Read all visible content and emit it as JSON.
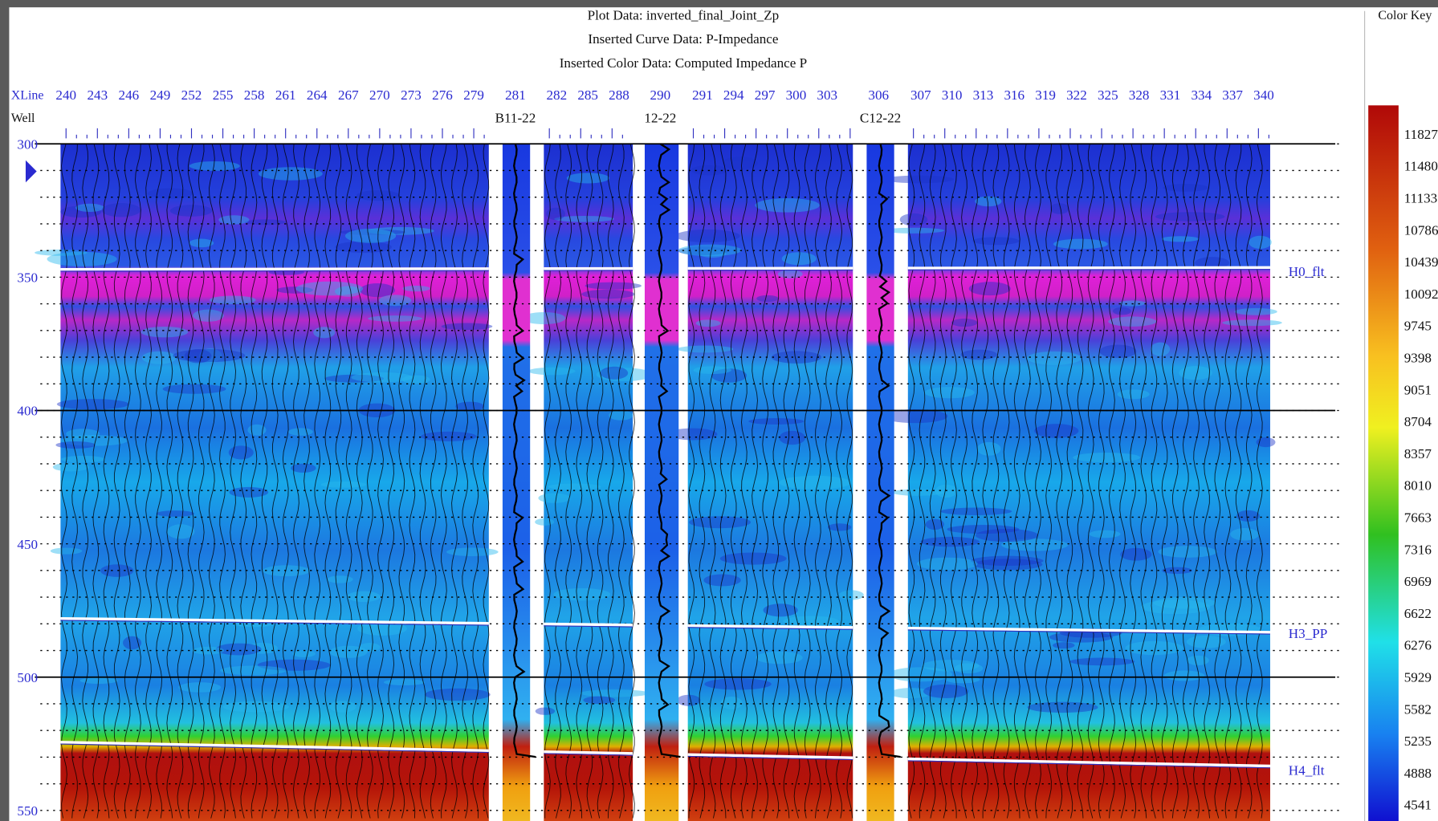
{
  "header": {
    "plot_data": "Plot Data: inverted_final_Joint_Zp",
    "curve_data": "Inserted Curve Data: P-Impedance",
    "color_data": "Inserted Color Data: Computed Impedance P"
  },
  "axis_titles": {
    "xline": "XLine",
    "well": "Well"
  },
  "xlines": [
    "240",
    "243",
    "246",
    "249",
    "252",
    "255",
    "258",
    "261",
    "264",
    "267",
    "270",
    "273",
    "276",
    "279",
    "281",
    "282",
    "285",
    "288",
    "290",
    "291",
    "294",
    "297",
    "300",
    "303",
    "306",
    "307",
    "310",
    "313",
    "316",
    "319",
    "322",
    "325",
    "328",
    "331",
    "334",
    "337",
    "340"
  ],
  "wells": [
    "B11-22",
    "12-22",
    "C12-22"
  ],
  "time_labels": [
    "300",
    "350",
    "400",
    "450",
    "500",
    "550"
  ],
  "horizons": [
    "H0_flt",
    "H3_PP",
    "H4_flt"
  ],
  "color_key": {
    "title": "Color Key",
    "labels": [
      "11827",
      "11480",
      "11133",
      "10786",
      "10439",
      "10092",
      "9745",
      "9398",
      "9051",
      "8704",
      "8357",
      "8010",
      "7663",
      "7316",
      "6969",
      "6622",
      "6276",
      "5929",
      "5582",
      "5235",
      "4888",
      "4541"
    ]
  }
}
